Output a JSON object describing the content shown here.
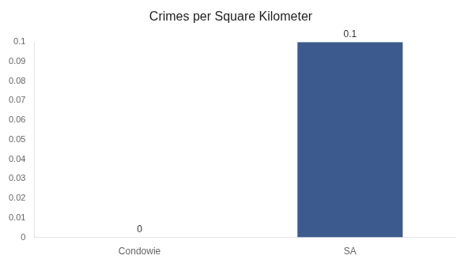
{
  "chart_data": {
    "type": "bar",
    "title": "Crimes per Square Kilometer",
    "categories": [
      "Condowie",
      "SA"
    ],
    "values": [
      0.0,
      0.1
    ],
    "color": "#3d5a8e",
    "ylim": [
      0,
      0.1
    ],
    "yticks": [
      0,
      0.01,
      0.02,
      0.03,
      0.04,
      0.05,
      0.06,
      0.07,
      0.08,
      0.09,
      0.1
    ],
    "grid": false,
    "data_labels": true
  }
}
